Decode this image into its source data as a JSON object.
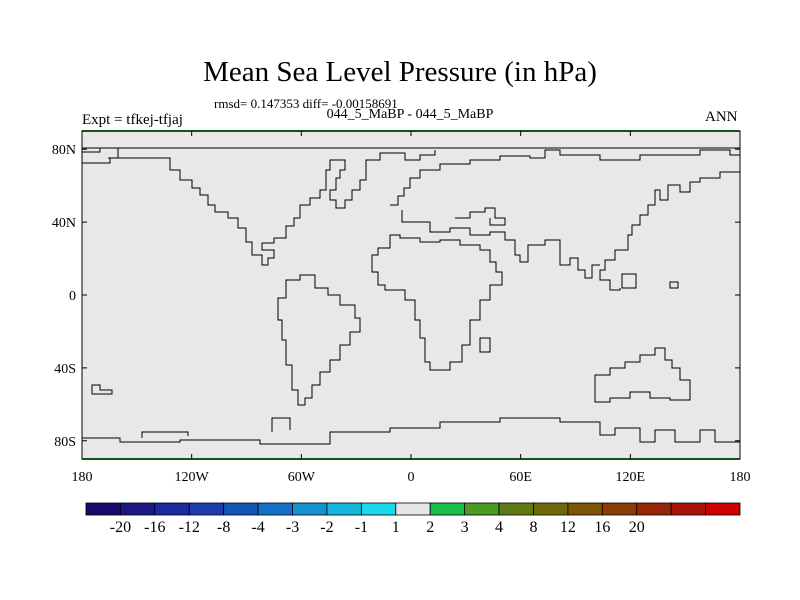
{
  "chart_data": {
    "type": "heatmap",
    "title": "Mean Sea Level Pressure (in hPa)",
    "stats_line": "rmsd= 0.147353 diff= -0.00158691",
    "subtitle": "044_5_MaBP - 044_5_MaBP",
    "left_label": "Expt = tfkej-tfjaj",
    "right_label": "ANN",
    "xlim": [
      -180,
      180
    ],
    "ylim": [
      -90,
      90
    ],
    "x_ticks": [
      {
        "value": -180,
        "label": "180"
      },
      {
        "value": -120,
        "label": "120W"
      },
      {
        "value": -60,
        "label": "60W"
      },
      {
        "value": 0,
        "label": "0"
      },
      {
        "value": 60,
        "label": "60E"
      },
      {
        "value": 120,
        "label": "120E"
      },
      {
        "value": 180,
        "label": "180"
      }
    ],
    "y_ticks": [
      {
        "value": 80,
        "label": "80N"
      },
      {
        "value": 40,
        "label": "40N"
      },
      {
        "value": 0,
        "label": "0"
      },
      {
        "value": -40,
        "label": "40S"
      },
      {
        "value": -80,
        "label": "80S"
      }
    ],
    "field_value": 0,
    "field_color": "#e8e8e8",
    "colorbar": {
      "labels": [
        "-20",
        "-16",
        "-12",
        "-8",
        "-4",
        "-3",
        "-2",
        "-1",
        "1",
        "2",
        "3",
        "4",
        "8",
        "12",
        "16",
        "20"
      ],
      "colors": [
        "#1a0a6b",
        "#1c1786",
        "#1b2aa0",
        "#1c3cae",
        "#1455b8",
        "#1470c6",
        "#1491cf",
        "#16b6dc",
        "#1ad9e8",
        "#e6e6e6",
        "#1cbd48",
        "#4a9a23",
        "#607a14",
        "#6e6a0a",
        "#7e5408",
        "#8b3d06",
        "#992507",
        "#a81209",
        "#cc0000"
      ]
    }
  }
}
